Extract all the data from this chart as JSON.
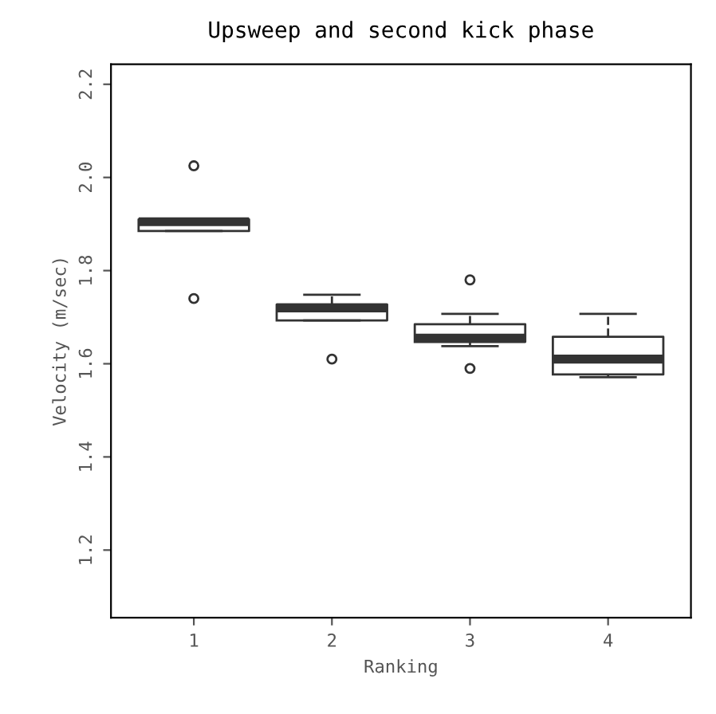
{
  "chart_data": {
    "type": "box",
    "title": "Upsweep and second kick phase",
    "xlabel": "Ranking",
    "ylabel": "Velocity (m/sec)",
    "categories": [
      "1",
      "2",
      "3",
      "4"
    ],
    "boxes": [
      {
        "low": 1.885,
        "q1": 1.885,
        "median": 1.905,
        "q3": 1.91,
        "high": 1.91,
        "outliers": [
          2.025,
          1.74
        ]
      },
      {
        "low": 1.693,
        "q1": 1.693,
        "median": 1.72,
        "q3": 1.727,
        "high": 1.748,
        "outliers": [
          1.61
        ]
      },
      {
        "low": 1.638,
        "q1": 1.647,
        "median": 1.655,
        "q3": 1.685,
        "high": 1.707,
        "outliers": [
          1.78,
          1.59
        ]
      },
      {
        "low": 1.571,
        "q1": 1.577,
        "median": 1.61,
        "q3": 1.658,
        "high": 1.707
      }
    ],
    "ylim": [
      1.055,
      2.243
    ],
    "yticks": [
      1.2,
      1.4,
      1.6,
      1.8,
      {
        "value": 2,
        "label": "2.0"
      },
      2.2
    ],
    "grid": false
  }
}
